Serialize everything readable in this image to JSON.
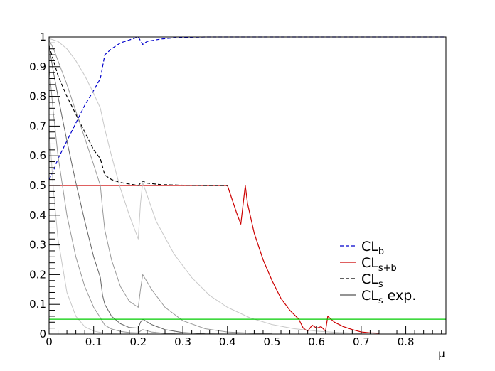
{
  "chart_data": {
    "type": "line",
    "xlabel": "μ",
    "ylabel": "",
    "xlim": [
      0,
      0.89
    ],
    "ylim": [
      0,
      1
    ],
    "x_ticks": [
      "0",
      "0.1",
      "0.2",
      "0.3",
      "0.4",
      "0.5",
      "0.6",
      "0.7",
      "0.8"
    ],
    "y_ticks": [
      "0",
      "0.1",
      "0.2",
      "0.3",
      "0.4",
      "0.5",
      "0.6",
      "0.7",
      "0.8",
      "0.9",
      "1"
    ],
    "legend_position": "bottom-right",
    "legend": [
      {
        "id": "clb",
        "main": "CL",
        "sub": "b",
        "suffix": "",
        "color": "#0000cc",
        "dash": "5,3"
      },
      {
        "id": "clsb",
        "main": "CL",
        "sub": "s+b",
        "suffix": "",
        "color": "#cc0000",
        "dash": ""
      },
      {
        "id": "cls",
        "main": "CL",
        "sub": "s",
        "suffix": "",
        "color": "#000000",
        "dash": "5,3"
      },
      {
        "id": "clsexp",
        "main": "CL",
        "sub": "s",
        "suffix": " exp.",
        "color": "#555555",
        "dash": ""
      }
    ],
    "series": [
      {
        "id": "clb",
        "color": "#0000cc",
        "dash": "5,3",
        "width": 1.2,
        "x": [
          0,
          0.01,
          0.02,
          0.04,
          0.06,
          0.08,
          0.1,
          0.115,
          0.125,
          0.14,
          0.16,
          0.18,
          0.2,
          0.21,
          0.22,
          0.25,
          0.28,
          0.31,
          0.35,
          0.4,
          0.5,
          0.6,
          0.7,
          0.8,
          0.89
        ],
        "y": [
          0.52,
          0.55,
          0.59,
          0.65,
          0.71,
          0.77,
          0.82,
          0.86,
          0.94,
          0.96,
          0.98,
          0.99,
          1.0,
          0.975,
          0.985,
          0.993,
          0.997,
          0.999,
          1,
          1,
          1,
          1,
          1,
          1,
          1
        ]
      },
      {
        "id": "clsb",
        "color": "#cc0000",
        "dash": "",
        "width": 1.2,
        "x": [
          0,
          0.1,
          0.2,
          0.3,
          0.4,
          0.42,
          0.43,
          0.44,
          0.445,
          0.46,
          0.48,
          0.5,
          0.52,
          0.54,
          0.56,
          0.57,
          0.58,
          0.59,
          0.6,
          0.61,
          0.62,
          0.625,
          0.64,
          0.66,
          0.68,
          0.7,
          0.72,
          0.74
        ],
        "y": [
          0.5,
          0.5,
          0.5,
          0.5,
          0.5,
          0.41,
          0.37,
          0.5,
          0.44,
          0.34,
          0.25,
          0.18,
          0.12,
          0.08,
          0.05,
          0.02,
          0.01,
          0.03,
          0.02,
          0.025,
          0.01,
          0.06,
          0.04,
          0.025,
          0.015,
          0.007,
          0.004,
          0.003
        ]
      },
      {
        "id": "cls",
        "color": "#000000",
        "dash": "5,3",
        "width": 1.2,
        "x": [
          0,
          0.01,
          0.02,
          0.04,
          0.06,
          0.08,
          0.1,
          0.115,
          0.125,
          0.14,
          0.16,
          0.18,
          0.2,
          0.21,
          0.22,
          0.25,
          0.3,
          0.35,
          0.4
        ],
        "y": [
          0.97,
          0.92,
          0.87,
          0.8,
          0.74,
          0.68,
          0.62,
          0.59,
          0.535,
          0.52,
          0.51,
          0.505,
          0.5,
          0.515,
          0.508,
          0.503,
          0.501,
          0.5,
          0.5
        ]
      },
      {
        "id": "band_hi2",
        "color": "#c8c8c8",
        "dash": "",
        "width": 1,
        "x": [
          0,
          0.02,
          0.04,
          0.06,
          0.08,
          0.1,
          0.115,
          0.125,
          0.14,
          0.16,
          0.18,
          0.2,
          0.205,
          0.21,
          0.24,
          0.28,
          0.32,
          0.36,
          0.4,
          0.45,
          0.5,
          0.55,
          0.6,
          0.65,
          0.7
        ],
        "y": [
          0.995,
          0.985,
          0.96,
          0.92,
          0.87,
          0.81,
          0.76,
          0.69,
          0.6,
          0.49,
          0.4,
          0.32,
          0.44,
          0.51,
          0.38,
          0.27,
          0.19,
          0.13,
          0.09,
          0.055,
          0.032,
          0.018,
          0.01,
          0.005,
          0.002
        ]
      },
      {
        "id": "band_hi1",
        "color": "#999999",
        "dash": "",
        "width": 1,
        "x": [
          0,
          0.01,
          0.02,
          0.04,
          0.06,
          0.08,
          0.1,
          0.115,
          0.12,
          0.125,
          0.14,
          0.16,
          0.18,
          0.2,
          0.205,
          0.21,
          0.23,
          0.26,
          0.3,
          0.35,
          0.4,
          0.45,
          0.5
        ],
        "y": [
          0.99,
          0.96,
          0.92,
          0.84,
          0.75,
          0.66,
          0.57,
          0.5,
          0.42,
          0.35,
          0.25,
          0.16,
          0.11,
          0.09,
          0.15,
          0.2,
          0.15,
          0.09,
          0.045,
          0.018,
          0.007,
          0.003,
          0.001
        ]
      },
      {
        "id": "band_med",
        "color": "#666666",
        "dash": "",
        "width": 1,
        "x": [
          0,
          0.01,
          0.02,
          0.04,
          0.06,
          0.08,
          0.1,
          0.115,
          0.12,
          0.125,
          0.14,
          0.16,
          0.18,
          0.2,
          0.205,
          0.21,
          0.23,
          0.26,
          0.3,
          0.35,
          0.4
        ],
        "y": [
          0.97,
          0.88,
          0.8,
          0.65,
          0.51,
          0.38,
          0.26,
          0.19,
          0.13,
          0.1,
          0.06,
          0.035,
          0.022,
          0.02,
          0.04,
          0.05,
          0.032,
          0.015,
          0.005,
          0.001,
          0.0
        ]
      },
      {
        "id": "band_lo1",
        "color": "#999999",
        "dash": "",
        "width": 1,
        "x": [
          0,
          0.01,
          0.02,
          0.04,
          0.06,
          0.08,
          0.1,
          0.115,
          0.125,
          0.14,
          0.16,
          0.18,
          0.2,
          0.205,
          0.21,
          0.23,
          0.26,
          0.3
        ],
        "y": [
          0.9,
          0.74,
          0.6,
          0.4,
          0.26,
          0.16,
          0.09,
          0.055,
          0.03,
          0.017,
          0.009,
          0.005,
          0.004,
          0.01,
          0.015,
          0.007,
          0.002,
          0.0
        ]
      },
      {
        "id": "band_lo2",
        "color": "#c8c8c8",
        "dash": "",
        "width": 1,
        "x": [
          0,
          0.01,
          0.02,
          0.04,
          0.06,
          0.08,
          0.1,
          0.12,
          0.14,
          0.16,
          0.2
        ],
        "y": [
          0.7,
          0.48,
          0.32,
          0.14,
          0.06,
          0.025,
          0.01,
          0.004,
          0.001,
          0.0,
          0.0
        ]
      },
      {
        "id": "threshold",
        "color": "#00cc00",
        "dash": "",
        "width": 1.2,
        "x": [
          0,
          0.89
        ],
        "y": [
          0.05,
          0.05
        ]
      }
    ]
  }
}
